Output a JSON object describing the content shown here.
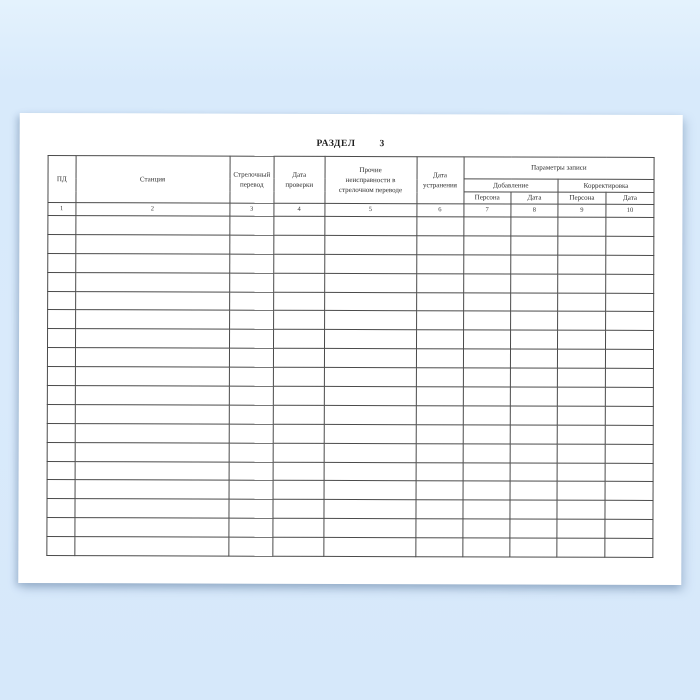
{
  "document": {
    "section_title": "РАЗДЕЛ  3"
  },
  "table": {
    "headers": {
      "pd": "ПД",
      "station": "Станция",
      "switch_turnout": "Стрелочный\nперевод",
      "check_date": "Дата\nпроверки",
      "other_faults": "Прочие\nнеисправности в\nстрелочном переводе",
      "fix_date": "Дата\nустранения",
      "record_params": "Параметры записи",
      "addition": "Добавление",
      "correction": "Корректировка",
      "subcolumns": [
        "Персона",
        "Дата",
        "Персона",
        "Дата"
      ]
    },
    "column_numbers": [
      "1",
      "2",
      "3",
      "4",
      "5",
      "6",
      "7",
      "8",
      "9",
      "10"
    ],
    "body_row_count": 18
  },
  "colors": {
    "background_top": "#e4f2fd",
    "background_main": "#d8eafb",
    "paper": "#ffffff",
    "table_border": "#4b4b4b",
    "text": "#2e2e2e"
  }
}
